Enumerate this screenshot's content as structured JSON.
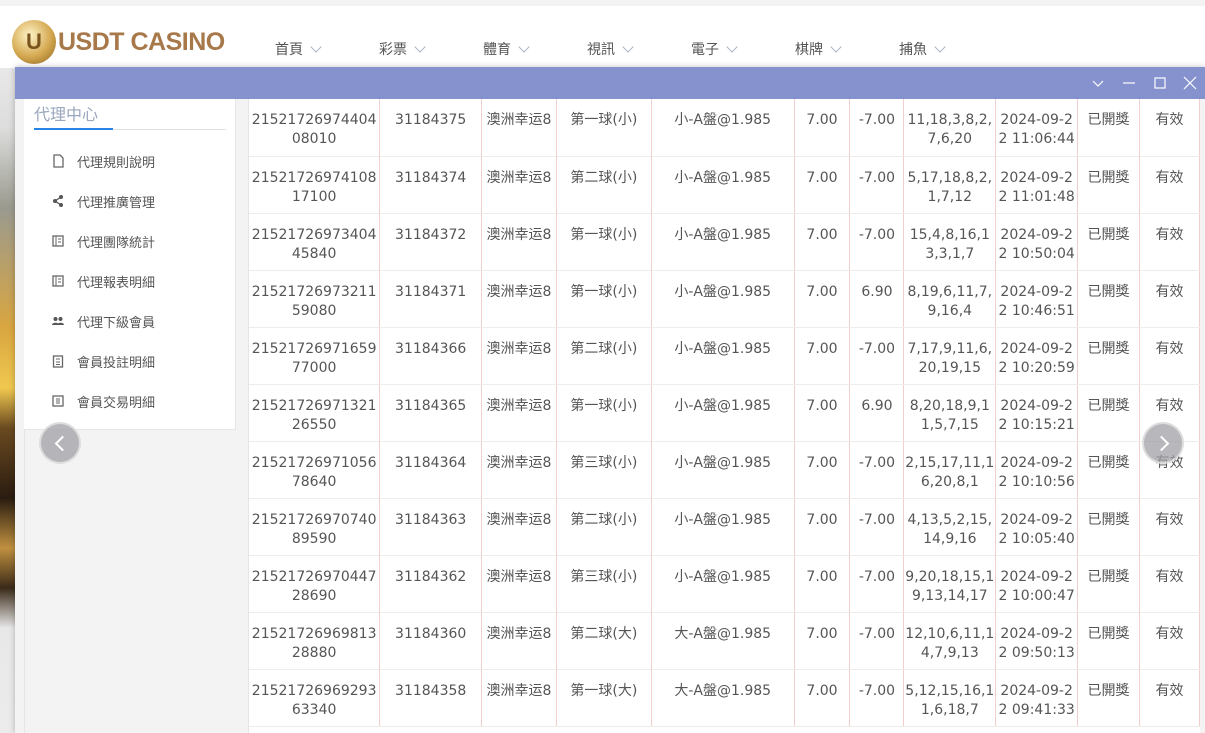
{
  "brand": {
    "logo_letter": "U",
    "name": "USDT CASINO"
  },
  "nav": [
    {
      "label": "首頁"
    },
    {
      "label": "彩票"
    },
    {
      "label": "體育"
    },
    {
      "label": "視訊"
    },
    {
      "label": "電子"
    },
    {
      "label": "棋牌"
    },
    {
      "label": "捕魚"
    }
  ],
  "window": {
    "color": "#8592ce",
    "controls": [
      "chevron-down-icon",
      "minimize-icon",
      "maximize-icon",
      "close-icon"
    ]
  },
  "sidebar": {
    "title": "代理中心",
    "items": [
      {
        "label": "代理規則說明",
        "icon": "file-icon"
      },
      {
        "label": "代理推廣管理",
        "icon": "share-icon"
      },
      {
        "label": "代理團隊統計",
        "icon": "book-icon"
      },
      {
        "label": "代理報表明細",
        "icon": "book-icon"
      },
      {
        "label": "代理下級會員",
        "icon": "users-icon"
      },
      {
        "label": "會員投註明細",
        "icon": "clipboard-icon"
      },
      {
        "label": "會員交易明細",
        "icon": "list-icon"
      }
    ]
  },
  "rows": [
    [
      "2152172697440408010",
      "31184375",
      "澳洲幸运8",
      "第一球(小)",
      "小-A盤@1.985",
      "7.00",
      "-7.00",
      "11,18,3,8,2,7,6,20",
      "2024-09-22 11:06:44",
      "已開獎",
      "有效"
    ],
    [
      "2152172697410817100",
      "31184374",
      "澳洲幸运8",
      "第二球(小)",
      "小-A盤@1.985",
      "7.00",
      "-7.00",
      "5,17,18,8,2,1,7,12",
      "2024-09-22 11:01:48",
      "已開獎",
      "有效"
    ],
    [
      "2152172697340445840",
      "31184372",
      "澳洲幸运8",
      "第一球(小)",
      "小-A盤@1.985",
      "7.00",
      "-7.00",
      "15,4,8,16,13,3,1,7",
      "2024-09-22 10:50:04",
      "已開獎",
      "有效"
    ],
    [
      "2152172697321159080",
      "31184371",
      "澳洲幸运8",
      "第一球(小)",
      "小-A盤@1.985",
      "7.00",
      "6.90",
      "8,19,6,11,7,9,16,4",
      "2024-09-22 10:46:51",
      "已開獎",
      "有效"
    ],
    [
      "2152172697165977000",
      "31184366",
      "澳洲幸运8",
      "第二球(小)",
      "小-A盤@1.985",
      "7.00",
      "-7.00",
      "7,17,9,11,6,20,19,15",
      "2024-09-22 10:20:59",
      "已開獎",
      "有效"
    ],
    [
      "2152172697132126550",
      "31184365",
      "澳洲幸运8",
      "第一球(小)",
      "小-A盤@1.985",
      "7.00",
      "6.90",
      "8,20,18,9,11,5,7,15",
      "2024-09-22 10:15:21",
      "已開獎",
      "有效"
    ],
    [
      "2152172697105678640",
      "31184364",
      "澳洲幸运8",
      "第三球(小)",
      "小-A盤@1.985",
      "7.00",
      "-7.00",
      "2,15,17,11,16,20,8,1",
      "2024-09-22 10:10:56",
      "已開獎",
      "有效"
    ],
    [
      "2152172697074089590",
      "31184363",
      "澳洲幸运8",
      "第二球(小)",
      "小-A盤@1.985",
      "7.00",
      "-7.00",
      "4,13,5,2,15,14,9,16",
      "2024-09-22 10:05:40",
      "已開獎",
      "有效"
    ],
    [
      "2152172697044728690",
      "31184362",
      "澳洲幸运8",
      "第三球(小)",
      "小-A盤@1.985",
      "7.00",
      "-7.00",
      "9,20,18,15,19,13,14,17",
      "2024-09-22 10:00:47",
      "已開獎",
      "有效"
    ],
    [
      "2152172696981328880",
      "31184360",
      "澳洲幸运8",
      "第二球(大)",
      "大-A盤@1.985",
      "7.00",
      "-7.00",
      "12,10,6,11,14,7,9,13",
      "2024-09-22 09:50:13",
      "已開獎",
      "有效"
    ],
    [
      "2152172696929363340",
      "31184358",
      "澳洲幸运8",
      "第一球(大)",
      "大-A盤@1.985",
      "7.00",
      "-7.00",
      "5,12,15,16,11,6,18,7",
      "2024-09-22 09:41:33",
      "已開獎",
      "有效"
    ]
  ]
}
